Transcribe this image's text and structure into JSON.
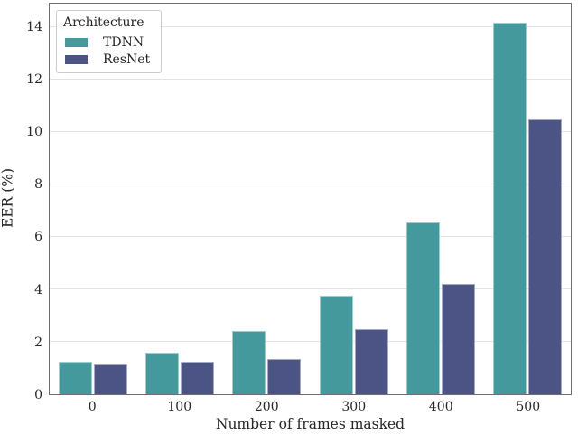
{
  "chart_data": {
    "type": "bar",
    "title": "",
    "xlabel": "Number of frames masked",
    "ylabel": "EER (%)",
    "categories": [
      "0",
      "100",
      "200",
      "300",
      "400",
      "500"
    ],
    "series": [
      {
        "name": "TDNN",
        "color": "#43999b",
        "values": [
          1.25,
          1.6,
          2.4,
          3.75,
          6.55,
          14.2
        ]
      },
      {
        "name": "ResNet",
        "color": "#4c5385",
        "values": [
          1.15,
          1.25,
          1.35,
          2.5,
          4.2,
          10.5
        ]
      }
    ],
    "ylim": [
      0,
      14.91
    ],
    "y_ticks": [
      0,
      2,
      4,
      6,
      8,
      10,
      12,
      14
    ],
    "grid": "horizontal",
    "legend": {
      "title": "Architecture",
      "position": "upper left"
    }
  },
  "colors": {
    "grid": "#e3e3e3",
    "spine": "#6e6e6e",
    "text": "#262626",
    "legend_border": "#cccccc",
    "background": "#ffffff"
  }
}
